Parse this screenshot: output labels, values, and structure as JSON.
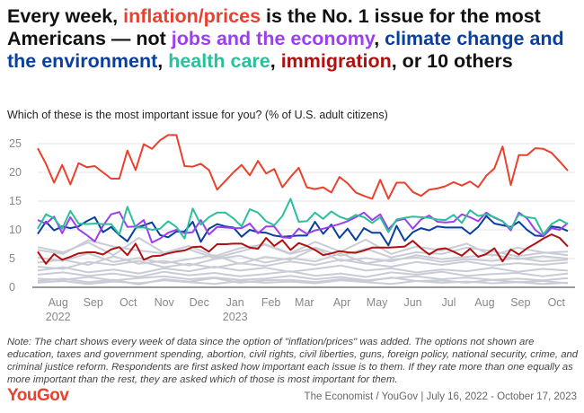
{
  "title": {
    "segments": [
      {
        "text": "Every week, ",
        "color": "#111111"
      },
      {
        "text": "inflation/prices",
        "color": "#e8412d"
      },
      {
        "text": " is the No. 1 issue for the most Americans — not ",
        "color": "#111111"
      },
      {
        "text": "jobs and the economy",
        "color": "#9b3ff0"
      },
      {
        "text": ", ",
        "color": "#111111"
      },
      {
        "text": "climate change and the environment",
        "color": "#0b3f9e"
      },
      {
        "text": ", ",
        "color": "#111111"
      },
      {
        "text": "health care",
        "color": "#2bbf9a"
      },
      {
        "text": ", ",
        "color": "#111111"
      },
      {
        "text": "immigration",
        "color": "#b01010"
      },
      {
        "text": ", or 10 others",
        "color": "#111111"
      }
    ]
  },
  "subtitle": "Which of these is the most important issue for you? (% of U.S. adult citizens)",
  "chart_data": {
    "type": "line",
    "title": "Every week, inflation/prices is the No. 1 issue for the most Americans",
    "xlabel": "",
    "ylabel": "% of U.S. adult citizens",
    "ylim": [
      0,
      25
    ],
    "yticks": [
      0,
      5,
      10,
      15,
      20,
      25
    ],
    "weeks": 66,
    "grid": true,
    "xticks": [
      {
        "week": 2.5,
        "label": "Aug",
        "sub": "2022"
      },
      {
        "week": 6.8,
        "label": "Sep",
        "sub": ""
      },
      {
        "week": 11.1,
        "label": "Oct",
        "sub": ""
      },
      {
        "week": 15.5,
        "label": "Nov",
        "sub": ""
      },
      {
        "week": 19.8,
        "label": "Dec",
        "sub": ""
      },
      {
        "week": 24.2,
        "label": "Jan",
        "sub": "2023"
      },
      {
        "week": 28.6,
        "label": "Feb",
        "sub": ""
      },
      {
        "week": 32.7,
        "label": "Mar",
        "sub": ""
      },
      {
        "week": 37.3,
        "label": "Apr",
        "sub": ""
      },
      {
        "week": 41.6,
        "label": "May",
        "sub": ""
      },
      {
        "week": 46.0,
        "label": "Jun",
        "sub": ""
      },
      {
        "week": 50.4,
        "label": "Jul",
        "sub": ""
      },
      {
        "week": 54.8,
        "label": "Aug",
        "sub": ""
      },
      {
        "week": 59.2,
        "label": "Sep",
        "sub": ""
      },
      {
        "week": 63.6,
        "label": "Oct",
        "sub": ""
      }
    ],
    "others_color": "#c9ccd6",
    "others": [
      [
        6.5,
        5.8,
        8.2,
        7.1,
        6.4,
        5.9,
        6.6,
        5.1,
        6.2,
        7.4,
        5.8,
        6.9,
        5.5,
        6.7,
        5.2,
        6.1,
        5.8,
        6.9,
        6.3,
        5.4,
        6.0,
        6.2
      ],
      [
        5.2,
        4.6,
        5.9,
        4.4,
        5.1,
        4.2,
        4.9,
        5.6,
        4.1,
        5.3,
        4.8,
        6.8,
        4.6,
        5.1,
        4.5,
        5.6,
        4.9,
        5.3,
        5.7,
        4.9,
        5.4,
        5.0
      ],
      [
        4.3,
        4.8,
        3.9,
        5.4,
        4.1,
        4.6,
        3.8,
        4.9,
        5.5,
        4.3,
        5.1,
        4.5,
        5.9,
        4.2,
        4.8,
        5.2,
        4.4,
        4.9,
        4.6,
        5.1,
        4.5,
        4.8
      ],
      [
        3.6,
        3.2,
        4.4,
        3.9,
        4.6,
        3.5,
        4.1,
        3.4,
        4.2,
        3.7,
        4.5,
        3.9,
        4.8,
        4.1,
        3.6,
        4.4,
        3.9,
        4.5,
        3.8,
        4.2,
        3.9,
        4.3
      ],
      [
        2.9,
        3.5,
        2.6,
        3.1,
        2.4,
        3.3,
        2.8,
        3.6,
        2.9,
        3.4,
        2.7,
        3.2,
        3.8,
        2.9,
        3.3,
        2.6,
        3.1,
        2.8,
        3.4,
        2.7,
        3.2,
        2.9
      ],
      [
        2.2,
        2.6,
        2.0,
        2.4,
        1.8,
        2.7,
        2.1,
        2.5,
        1.9,
        2.3,
        2.8,
        2.0,
        2.4,
        1.8,
        2.6,
        2.2,
        2.7,
        2.0,
        2.3,
        2.5,
        1.9,
        2.4
      ],
      [
        1.5,
        1.3,
        1.8,
        1.2,
        1.6,
        1.9,
        1.4,
        1.7,
        1.3,
        1.5,
        2.0,
        1.4,
        1.8,
        1.2,
        1.6,
        1.9,
        1.4,
        1.7,
        1.3,
        1.5,
        1.2,
        1.6
      ],
      [
        0.8,
        1.1,
        0.6,
        1.0,
        0.7,
        1.2,
        0.9,
        0.6,
        1.1,
        0.8,
        1.0,
        0.7,
        1.2,
        0.9,
        0.6,
        1.1,
        0.8,
        1.0,
        0.7,
        0.9,
        1.1,
        0.7
      ],
      [
        7.0,
        6.1,
        7.8,
        5.6,
        8.6,
        6.0,
        7.2,
        5.4,
        6.8,
        7.5,
        5.9,
        7.9,
        6.2,
        8.3,
        5.8,
        7.1,
        6.4,
        7.6,
        5.5,
        6.9,
        6.1,
        5.6
      ],
      [
        1.1,
        1.5,
        0.9,
        1.3,
        0.5,
        1.4,
        1.0,
        1.6,
        0.8,
        1.2,
        1.3,
        0.9,
        1.4,
        1.0,
        1.7,
        1.1,
        1.2,
        0.8,
        1.3,
        0.9,
        0.6,
        0.8
      ]
    ],
    "series": [
      {
        "name": "Immigration",
        "color": "#b01010",
        "values": [
          6.2,
          4.1,
          5.8,
          4.8,
          5.3,
          5.9,
          6.1,
          6.1,
          5.7,
          6.6,
          7,
          5.6,
          7.6,
          4.8,
          5.4,
          5.5,
          5.9,
          6.2,
          6.4,
          7,
          7.1,
          6.2,
          7.5,
          7.5,
          7.6,
          7.6,
          6.9,
          6.7,
          8.6,
          7.2,
          8.2,
          6.5,
          7.7,
          7.2,
          6.5,
          5.6,
          5.9,
          6.3,
          6.1,
          6,
          6.4,
          6.9,
          6.9,
          6.9,
          7,
          7.1,
          8.1,
          6.8,
          5.7,
          6.6,
          6.8,
          6.2,
          5.5,
          6.7,
          5.3,
          5.8,
          6.8,
          4.5,
          6.6,
          5.7,
          6.8,
          7.6,
          8.5,
          9.2,
          8.6,
          7.1
        ]
      },
      {
        "name": "Climate change and the environment",
        "color": "#0b3f9e",
        "values": [
          9.3,
          11.4,
          9.9,
          10.6,
          10.3,
          10.6,
          11.5,
          12.2,
          9.6,
          10.5,
          9.1,
          8,
          10.3,
          10.8,
          11.3,
          9.1,
          8.7,
          9.7,
          9.7,
          11.4,
          7.9,
          10.2,
          11,
          10.6,
          10.4,
          8.8,
          10,
          9.6,
          9.5,
          9,
          8.8,
          8.9,
          9,
          9,
          11.4,
          9.3,
          10.9,
          8.6,
          10.2,
          8.2,
          10.3,
          9.5,
          9.5,
          7.3,
          10.7,
          8.1,
          9.6,
          10.3,
          9.9,
          10.6,
          10.4,
          10.4,
          10.4,
          9.3,
          10.5,
          12.4,
          11.1,
          10.8,
          10.5,
          11.4,
          10,
          9,
          8.9,
          10.6,
          10.4,
          9.8
        ]
      },
      {
        "name": "Jobs and the economy",
        "color": "#9b3ff0",
        "values": [
          11.7,
          11.1,
          12.3,
          9.4,
          12.2,
          10.1,
          9.1,
          8,
          10.7,
          12.7,
          13.1,
          10.5,
          10.6,
          11.7,
          7.8,
          8.5,
          9.5,
          10,
          9.4,
          9.6,
          11.7,
          9.2,
          10.5,
          10.4,
          10.3,
          10.3,
          11.1,
          9.4,
          10.6,
          10.6,
          8.7,
          8.6,
          10.2,
          9.3,
          9.9,
          10.2,
          10.6,
          11,
          11.5,
          12.2,
          13,
          11.7,
          12.7,
          10.1,
          11.6,
          11.9,
          10.2,
          11.8,
          12.5,
          11.4,
          11.3,
          11.4,
          12.7,
          12.2,
          11.5,
          13,
          12.1,
          11.5,
          9.9,
          13,
          12,
          10,
          8.9,
          10.3,
          10,
          11.2
        ]
      },
      {
        "name": "Health care",
        "color": "#2bbf9a",
        "values": [
          10.2,
          12.7,
          12,
          10.2,
          13.3,
          11.1,
          11,
          11.1,
          11,
          11,
          9.2,
          14,
          10.4,
          10.4,
          10,
          10.2,
          11.5,
          10.5,
          8.5,
          13.7,
          10.9,
          12.2,
          13,
          13,
          12,
          10.6,
          13.6,
          13,
          11.5,
          10.8,
          12.4,
          15.4,
          11.4,
          11.5,
          13,
          11.9,
          13.2,
          12.3,
          11.8,
          12.6,
          12.2,
          11.2,
          12.2,
          9.6,
          11.8,
          12.1,
          12.3,
          12.2,
          12.1,
          11.8,
          11.7,
          12.6,
          11.2,
          13.4,
          12.4,
          12.7,
          12.2,
          11.5,
          10.2,
          12.7,
          12.2,
          12,
          9.2,
          11,
          11.8,
          11
        ]
      },
      {
        "name": "Inflation/prices",
        "color": "#e8412d",
        "values": [
          24.2,
          21.5,
          18.2,
          21.3,
          17.9,
          21.6,
          20.9,
          21.1,
          20,
          18.9,
          18.9,
          23.8,
          20.4,
          24.9,
          24.1,
          25.6,
          26.5,
          26.5,
          21.1,
          21,
          21.5,
          20.4,
          17,
          18.5,
          20,
          21.3,
          19.5,
          22,
          19.8,
          20.6,
          17.4,
          19.2,
          20.8,
          17.4,
          17.1,
          17.4,
          16.5,
          19.2,
          18.1,
          16.5,
          15.9,
          15.4,
          18.7,
          15.4,
          18.2,
          18.2,
          16.6,
          15.9,
          17,
          17.2,
          17.6,
          18.3,
          17.7,
          18.4,
          17.4,
          19.4,
          20.7,
          24.5,
          17.8,
          23,
          23,
          24.2,
          24.1,
          23.4,
          21.9,
          20.3
        ]
      }
    ]
  },
  "note": "Note: The chart shows every week of data since the option of \"inflation/prices\" was added. The options not shown are education, taxes and government spending, abortion, civil rights, civil liberties, guns, foreign policy, national security, crime, and criminal justice reform. Respondents are first asked how important each issue is to them. If they rate more than one equally as more important than the rest, they are asked which of those is most important for them.",
  "logo": {
    "text": "YouGov",
    "color": "#e8412d"
  },
  "source": "The Economist / YouGov | July 16, 2022 - October 17, 2023"
}
